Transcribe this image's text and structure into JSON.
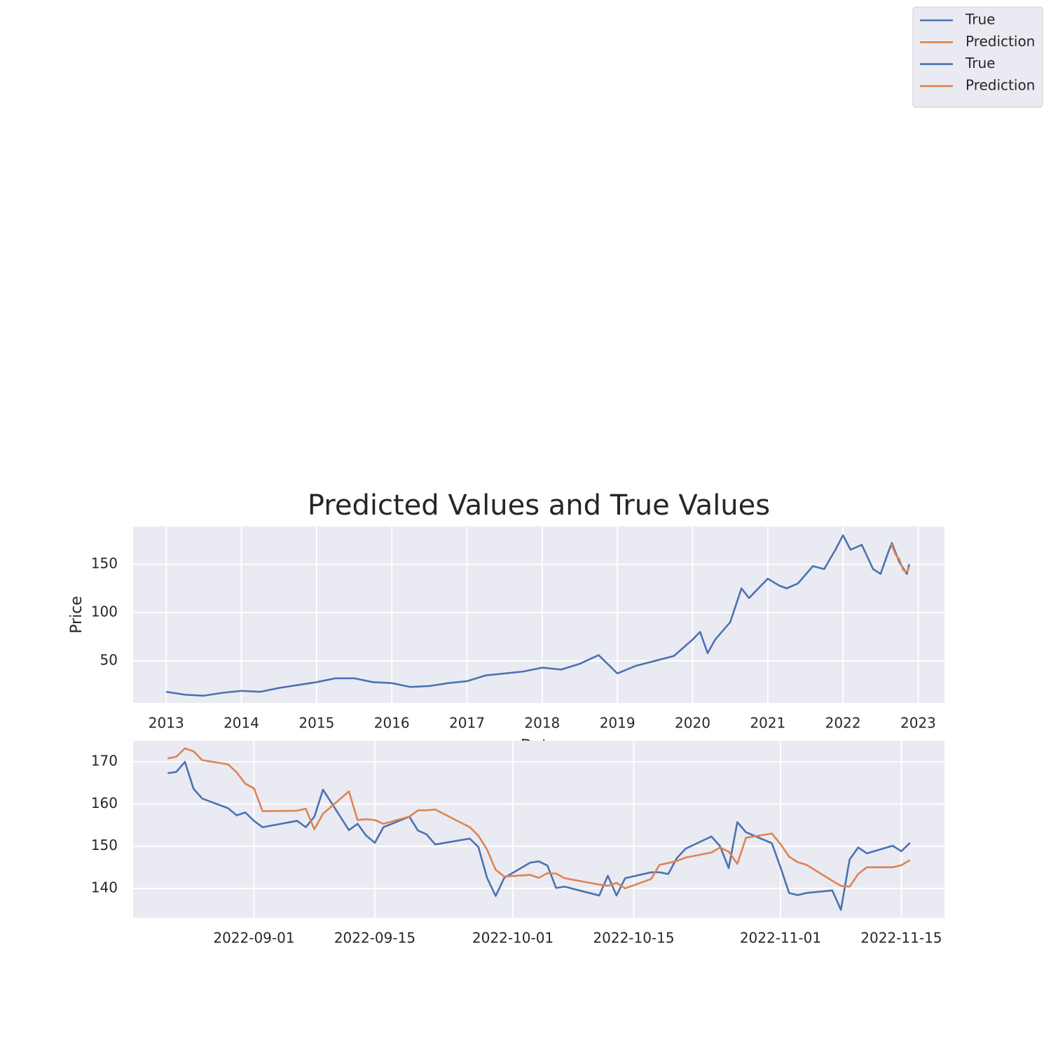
{
  "chart_data": [
    {
      "type": "line",
      "title": "Predicted Values and True Values",
      "xlabel": "Date",
      "ylabel": "Price",
      "xlim": [
        2012.56,
        2023.35
      ],
      "xticks": [
        2013,
        2014,
        2015,
        2016,
        2017,
        2018,
        2019,
        2020,
        2021,
        2022,
        2023
      ],
      "ylim": [
        6.5,
        189
      ],
      "yticks": [
        50,
        100,
        150
      ],
      "grid": true,
      "series": [
        {
          "name": "True",
          "color": "#4c72b0",
          "x": [
            2013.0,
            2013.25,
            2013.5,
            2013.75,
            2014.0,
            2014.25,
            2014.5,
            2014.75,
            2015.0,
            2015.25,
            2015.5,
            2015.75,
            2016.0,
            2016.25,
            2016.5,
            2016.75,
            2017.0,
            2017.25,
            2017.5,
            2017.75,
            2018.0,
            2018.25,
            2018.5,
            2018.75,
            2019.0,
            2019.25,
            2019.5,
            2019.75,
            2020.0,
            2020.1,
            2020.2,
            2020.3,
            2020.5,
            2020.65,
            2020.75,
            2021.0,
            2021.15,
            2021.25,
            2021.4,
            2021.6,
            2021.75,
            2021.9,
            2022.0,
            2022.1,
            2022.25,
            2022.4,
            2022.5,
            2022.6,
            2022.65,
            2022.75,
            2022.85,
            2022.88
          ],
          "values": [
            18,
            15,
            14,
            17,
            19,
            18,
            22,
            25,
            28,
            32,
            32,
            28,
            27,
            23,
            24,
            27,
            29,
            35,
            37,
            39,
            43,
            41,
            47,
            56,
            37,
            45,
            50,
            55,
            72,
            80,
            58,
            72,
            90,
            125,
            115,
            135,
            128,
            125,
            130,
            148,
            145,
            165,
            180,
            165,
            170,
            145,
            140,
            162,
            172,
            152,
            140,
            150
          ]
        },
        {
          "name": "Prediction",
          "color": "#dd8452",
          "x": [
            2022.64,
            2022.7,
            2022.75,
            2022.8,
            2022.85,
            2022.88
          ],
          "values": [
            171,
            160,
            155,
            144,
            142,
            147
          ]
        }
      ]
    },
    {
      "type": "line",
      "xlim": [
        "2022-08-18",
        "2022-11-20"
      ],
      "xticks": [
        "2022-09-01",
        "2022-09-15",
        "2022-10-01",
        "2022-10-15",
        "2022-11-01",
        "2022-11-15"
      ],
      "ylim": [
        133,
        175
      ],
      "yticks": [
        140,
        150,
        160,
        170
      ],
      "grid": true,
      "series": [
        {
          "name": "True",
          "color": "#4c72b0",
          "x": [
            "2022-08-22",
            "2022-08-23",
            "2022-08-24",
            "2022-08-25",
            "2022-08-26",
            "2022-08-29",
            "2022-08-30",
            "2022-08-31",
            "2022-09-01",
            "2022-09-02",
            "2022-09-06",
            "2022-09-07",
            "2022-09-08",
            "2022-09-09",
            "2022-09-12",
            "2022-09-13",
            "2022-09-14",
            "2022-09-15",
            "2022-09-16",
            "2022-09-19",
            "2022-09-20",
            "2022-09-21",
            "2022-09-22",
            "2022-09-26",
            "2022-09-27",
            "2022-09-28",
            "2022-09-29",
            "2022-09-30",
            "2022-10-03",
            "2022-10-04",
            "2022-10-05",
            "2022-10-06",
            "2022-10-07",
            "2022-10-11",
            "2022-10-12",
            "2022-10-13",
            "2022-10-14",
            "2022-10-17",
            "2022-10-18",
            "2022-10-19",
            "2022-10-20",
            "2022-10-21",
            "2022-10-24",
            "2022-10-25",
            "2022-10-26",
            "2022-10-27",
            "2022-10-28",
            "2022-10-31",
            "2022-11-01",
            "2022-11-02",
            "2022-11-03",
            "2022-11-04",
            "2022-11-07",
            "2022-11-08",
            "2022-11-09",
            "2022-11-10",
            "2022-11-11",
            "2022-11-14",
            "2022-11-15",
            "2022-11-16"
          ],
          "values": [
            167.3,
            167.6,
            170,
            163.6,
            161.3,
            159,
            157.3,
            158,
            156,
            154.5,
            156,
            154.5,
            157,
            163.4,
            153.8,
            155.3,
            152.5,
            150.8,
            154.5,
            157,
            153.7,
            152.8,
            150.4,
            151.8,
            149.8,
            142.5,
            138.2,
            142.5,
            146.1,
            146.4,
            145.4,
            140.1,
            140.4,
            138.3,
            143,
            138.3,
            142.4,
            143.8,
            143.8,
            143.4,
            147.2,
            149.4,
            152.3,
            150,
            144.8,
            155.7,
            153.3,
            150.7,
            145,
            138.9,
            138.4,
            138.9,
            139.5,
            134.9,
            146.8,
            149.7,
            148.3,
            150.1,
            148.8,
            150.8
          ]
        },
        {
          "name": "Prediction",
          "color": "#dd8452",
          "x": [
            "2022-08-22",
            "2022-08-23",
            "2022-08-24",
            "2022-08-25",
            "2022-08-26",
            "2022-08-29",
            "2022-08-30",
            "2022-08-31",
            "2022-09-01",
            "2022-09-02",
            "2022-09-06",
            "2022-09-07",
            "2022-09-08",
            "2022-09-09",
            "2022-09-12",
            "2022-09-13",
            "2022-09-14",
            "2022-09-15",
            "2022-09-16",
            "2022-09-19",
            "2022-09-20",
            "2022-09-21",
            "2022-09-22",
            "2022-09-26",
            "2022-09-27",
            "2022-09-28",
            "2022-09-29",
            "2022-09-30",
            "2022-10-03",
            "2022-10-04",
            "2022-10-05",
            "2022-10-06",
            "2022-10-07",
            "2022-10-11",
            "2022-10-12",
            "2022-10-13",
            "2022-10-14",
            "2022-10-17",
            "2022-10-18",
            "2022-10-19",
            "2022-10-20",
            "2022-10-21",
            "2022-10-24",
            "2022-10-25",
            "2022-10-26",
            "2022-10-27",
            "2022-10-28",
            "2022-10-31",
            "2022-11-01",
            "2022-11-02",
            "2022-11-03",
            "2022-11-04",
            "2022-11-07",
            "2022-11-08",
            "2022-11-09",
            "2022-11-10",
            "2022-11-11",
            "2022-11-14",
            "2022-11-15",
            "2022-11-16"
          ],
          "values": [
            170.8,
            171.2,
            173.2,
            172.5,
            170.4,
            169.4,
            167.5,
            164.8,
            163.7,
            158.3,
            158.4,
            158.9,
            154,
            157.7,
            163,
            156.2,
            156.4,
            156.2,
            155.3,
            157,
            158.5,
            158.5,
            158.7,
            154.5,
            152.5,
            149.2,
            144.4,
            142.8,
            143.2,
            142.5,
            143.6,
            143.5,
            142.4,
            140.9,
            140.6,
            141.3,
            140,
            142.2,
            145.6,
            146,
            146.5,
            147.3,
            148.5,
            149.7,
            148.7,
            145.8,
            152,
            153,
            150.5,
            147.5,
            146.2,
            145.6,
            141.8,
            140.6,
            140.4,
            143.4,
            145,
            145,
            145.5,
            146.7
          ]
        }
      ]
    }
  ]
}
